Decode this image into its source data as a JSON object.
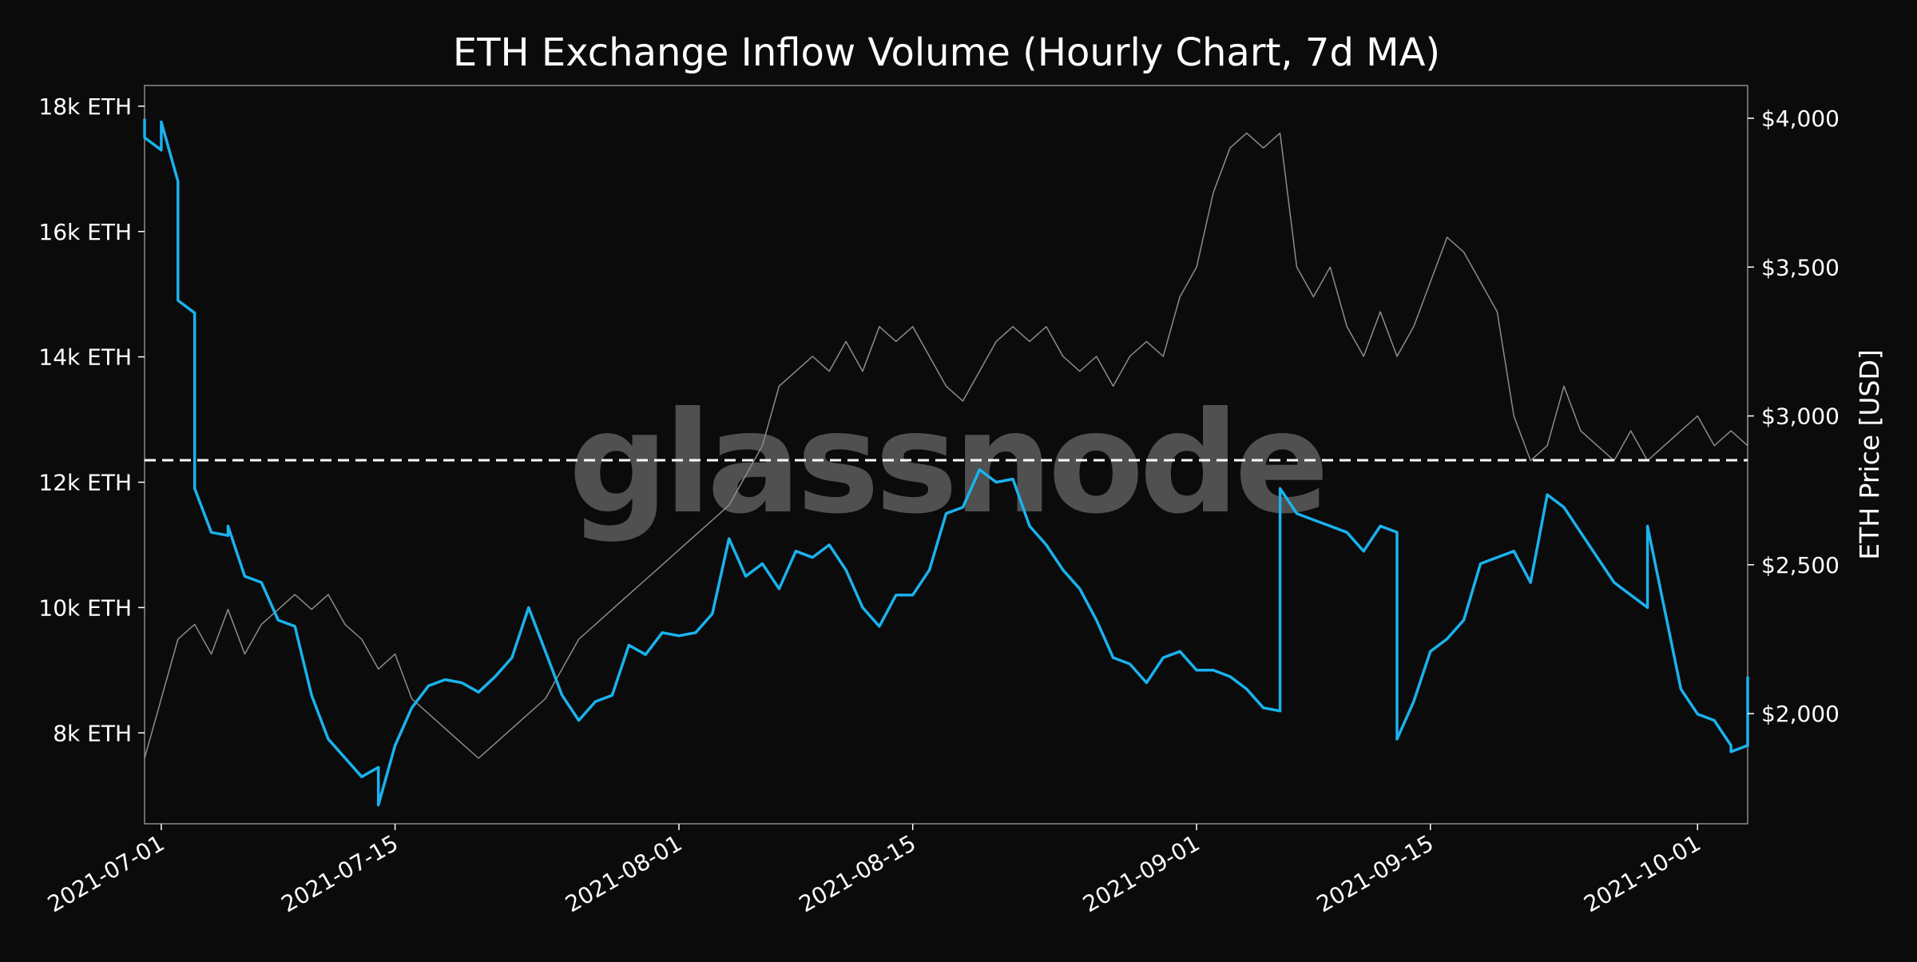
{
  "chart_data": {
    "type": "line",
    "title": "ETH Exchange Inflow Volume (Hourly Chart, 7d MA)",
    "watermark": "glassnode",
    "ylabel_right": "ETH Price [USD]",
    "x_range": [
      "2021-06-30",
      "2021-10-04"
    ],
    "x_ticks": [
      "2021-07-01",
      "2021-07-15",
      "2021-08-01",
      "2021-08-15",
      "2021-09-01",
      "2021-09-15",
      "2021-10-01"
    ],
    "y_left": {
      "range": [
        6550,
        18330
      ],
      "ticks": [
        {
          "value": 8000,
          "label": "8k ETH"
        },
        {
          "value": 10000,
          "label": "10k ETH"
        },
        {
          "value": 12000,
          "label": "12k ETH"
        },
        {
          "value": 14000,
          "label": "14k ETH"
        },
        {
          "value": 16000,
          "label": "16k ETH"
        },
        {
          "value": 18000,
          "label": "18k ETH"
        }
      ]
    },
    "y_right": {
      "range": [
        1630,
        4110
      ],
      "ticks": [
        {
          "value": 2000,
          "label": "$2,000"
        },
        {
          "value": 2500,
          "label": "$2,500"
        },
        {
          "value": 3000,
          "label": "$3,000"
        },
        {
          "value": 3500,
          "label": "$3,500"
        },
        {
          "value": 4000,
          "label": "$4,000"
        }
      ]
    },
    "reference_line": {
      "axis": "left",
      "value": 12350,
      "style": "dashed",
      "color": "#ffffff"
    },
    "grid": false,
    "colors": {
      "background": "#0b0b0b",
      "inflow": "#1ab2ee",
      "price": "#8c8c8c",
      "frame": "#8a8a8a"
    },
    "series": [
      {
        "key": "inflow",
        "axis": "left",
        "points": [
          [
            "2021-06-30",
            17800
          ],
          [
            "2021-06-30",
            17500
          ],
          [
            "2021-07-01",
            17300
          ],
          [
            "2021-07-01",
            17750
          ],
          [
            "2021-07-02",
            16800
          ],
          [
            "2021-07-02",
            14900
          ],
          [
            "2021-07-03",
            14700
          ],
          [
            "2021-07-03",
            11900
          ],
          [
            "2021-07-04",
            11200
          ],
          [
            "2021-07-05",
            11150
          ],
          [
            "2021-07-05",
            11300
          ],
          [
            "2021-07-06",
            10500
          ],
          [
            "2021-07-07",
            10400
          ],
          [
            "2021-07-08",
            9800
          ],
          [
            "2021-07-09",
            9700
          ],
          [
            "2021-07-10",
            8600
          ],
          [
            "2021-07-11",
            7900
          ],
          [
            "2021-07-12",
            7600
          ],
          [
            "2021-07-13",
            7300
          ],
          [
            "2021-07-14",
            7450
          ],
          [
            "2021-07-14",
            6850
          ],
          [
            "2021-07-15",
            7800
          ],
          [
            "2021-07-16",
            8400
          ],
          [
            "2021-07-17",
            8750
          ],
          [
            "2021-07-18",
            8850
          ],
          [
            "2021-07-19",
            8800
          ],
          [
            "2021-07-20",
            8650
          ],
          [
            "2021-07-21",
            8900
          ],
          [
            "2021-07-22",
            9200
          ],
          [
            "2021-07-23",
            10000
          ],
          [
            "2021-07-24",
            9300
          ],
          [
            "2021-07-25",
            8600
          ],
          [
            "2021-07-26",
            8200
          ],
          [
            "2021-07-27",
            8500
          ],
          [
            "2021-07-28",
            8600
          ],
          [
            "2021-07-29",
            9400
          ],
          [
            "2021-07-30",
            9250
          ],
          [
            "2021-07-31",
            9600
          ],
          [
            "2021-08-01",
            9550
          ],
          [
            "2021-08-02",
            9600
          ],
          [
            "2021-08-03",
            9900
          ],
          [
            "2021-08-04",
            11100
          ],
          [
            "2021-08-05",
            10500
          ],
          [
            "2021-08-06",
            10700
          ],
          [
            "2021-08-07",
            10300
          ],
          [
            "2021-08-08",
            10900
          ],
          [
            "2021-08-09",
            10800
          ],
          [
            "2021-08-10",
            11000
          ],
          [
            "2021-08-11",
            10600
          ],
          [
            "2021-08-12",
            10000
          ],
          [
            "2021-08-13",
            9700
          ],
          [
            "2021-08-14",
            10200
          ],
          [
            "2021-08-15",
            10200
          ],
          [
            "2021-08-16",
            10600
          ],
          [
            "2021-08-17",
            11500
          ],
          [
            "2021-08-18",
            11600
          ],
          [
            "2021-08-19",
            12200
          ],
          [
            "2021-08-20",
            12000
          ],
          [
            "2021-08-21",
            12050
          ],
          [
            "2021-08-22",
            11300
          ],
          [
            "2021-08-23",
            11000
          ],
          [
            "2021-08-24",
            10600
          ],
          [
            "2021-08-25",
            10300
          ],
          [
            "2021-08-26",
            9800
          ],
          [
            "2021-08-27",
            9200
          ],
          [
            "2021-08-28",
            9100
          ],
          [
            "2021-08-29",
            8800
          ],
          [
            "2021-08-30",
            9200
          ],
          [
            "2021-08-31",
            9300
          ],
          [
            "2021-09-01",
            9000
          ],
          [
            "2021-09-02",
            9000
          ],
          [
            "2021-09-03",
            8900
          ],
          [
            "2021-09-04",
            8700
          ],
          [
            "2021-09-05",
            8400
          ],
          [
            "2021-09-06",
            8350
          ],
          [
            "2021-09-06",
            11900
          ],
          [
            "2021-09-07",
            11500
          ],
          [
            "2021-09-08",
            11400
          ],
          [
            "2021-09-09",
            11300
          ],
          [
            "2021-09-10",
            11200
          ],
          [
            "2021-09-11",
            10900
          ],
          [
            "2021-09-12",
            11300
          ],
          [
            "2021-09-13",
            11200
          ],
          [
            "2021-09-13",
            7900
          ],
          [
            "2021-09-14",
            8500
          ],
          [
            "2021-09-15",
            9300
          ],
          [
            "2021-09-16",
            9500
          ],
          [
            "2021-09-17",
            9800
          ],
          [
            "2021-09-18",
            10700
          ],
          [
            "2021-09-19",
            10800
          ],
          [
            "2021-09-20",
            10900
          ],
          [
            "2021-09-21",
            10400
          ],
          [
            "2021-09-22",
            11800
          ],
          [
            "2021-09-23",
            11600
          ],
          [
            "2021-09-24",
            11200
          ],
          [
            "2021-09-25",
            10800
          ],
          [
            "2021-09-26",
            10400
          ],
          [
            "2021-09-27",
            10200
          ],
          [
            "2021-09-28",
            10000
          ],
          [
            "2021-09-28",
            11300
          ],
          [
            "2021-09-29",
            10000
          ],
          [
            "2021-09-30",
            8700
          ],
          [
            "2021-10-01",
            8300
          ],
          [
            "2021-10-02",
            8200
          ],
          [
            "2021-10-03",
            7800
          ],
          [
            "2021-10-03",
            7700
          ],
          [
            "2021-10-04",
            7800
          ],
          [
            "2021-10-04",
            8900
          ]
        ]
      },
      {
        "key": "price",
        "axis": "right",
        "points": [
          [
            "2021-06-30",
            1850
          ],
          [
            "2021-07-01",
            2050
          ],
          [
            "2021-07-02",
            2250
          ],
          [
            "2021-07-03",
            2300
          ],
          [
            "2021-07-04",
            2200
          ],
          [
            "2021-07-05",
            2350
          ],
          [
            "2021-07-06",
            2200
          ],
          [
            "2021-07-07",
            2300
          ],
          [
            "2021-07-08",
            2350
          ],
          [
            "2021-07-09",
            2400
          ],
          [
            "2021-07-10",
            2350
          ],
          [
            "2021-07-11",
            2400
          ],
          [
            "2021-07-12",
            2300
          ],
          [
            "2021-07-13",
            2250
          ],
          [
            "2021-07-14",
            2150
          ],
          [
            "2021-07-15",
            2200
          ],
          [
            "2021-07-16",
            2050
          ],
          [
            "2021-07-17",
            2000
          ],
          [
            "2021-07-18",
            1950
          ],
          [
            "2021-07-19",
            1900
          ],
          [
            "2021-07-20",
            1850
          ],
          [
            "2021-07-21",
            1900
          ],
          [
            "2021-07-22",
            1950
          ],
          [
            "2021-07-23",
            2000
          ],
          [
            "2021-07-24",
            2050
          ],
          [
            "2021-07-25",
            2150
          ],
          [
            "2021-07-26",
            2250
          ],
          [
            "2021-07-27",
            2300
          ],
          [
            "2021-07-28",
            2350
          ],
          [
            "2021-07-29",
            2400
          ],
          [
            "2021-07-30",
            2450
          ],
          [
            "2021-07-31",
            2500
          ],
          [
            "2021-08-01",
            2550
          ],
          [
            "2021-08-02",
            2600
          ],
          [
            "2021-08-03",
            2650
          ],
          [
            "2021-08-04",
            2700
          ],
          [
            "2021-08-05",
            2800
          ],
          [
            "2021-08-06",
            2900
          ],
          [
            "2021-08-07",
            3100
          ],
          [
            "2021-08-08",
            3150
          ],
          [
            "2021-08-09",
            3200
          ],
          [
            "2021-08-10",
            3150
          ],
          [
            "2021-08-11",
            3250
          ],
          [
            "2021-08-12",
            3150
          ],
          [
            "2021-08-13",
            3300
          ],
          [
            "2021-08-14",
            3250
          ],
          [
            "2021-08-15",
            3300
          ],
          [
            "2021-08-16",
            3200
          ],
          [
            "2021-08-17",
            3100
          ],
          [
            "2021-08-18",
            3050
          ],
          [
            "2021-08-19",
            3150
          ],
          [
            "2021-08-20",
            3250
          ],
          [
            "2021-08-21",
            3300
          ],
          [
            "2021-08-22",
            3250
          ],
          [
            "2021-08-23",
            3300
          ],
          [
            "2021-08-24",
            3200
          ],
          [
            "2021-08-25",
            3150
          ],
          [
            "2021-08-26",
            3200
          ],
          [
            "2021-08-27",
            3100
          ],
          [
            "2021-08-28",
            3200
          ],
          [
            "2021-08-29",
            3250
          ],
          [
            "2021-08-30",
            3200
          ],
          [
            "2021-08-31",
            3400
          ],
          [
            "2021-09-01",
            3500
          ],
          [
            "2021-09-02",
            3750
          ],
          [
            "2021-09-03",
            3900
          ],
          [
            "2021-09-04",
            3950
          ],
          [
            "2021-09-05",
            3900
          ],
          [
            "2021-09-06",
            3950
          ],
          [
            "2021-09-07",
            3500
          ],
          [
            "2021-09-08",
            3400
          ],
          [
            "2021-09-09",
            3500
          ],
          [
            "2021-09-10",
            3300
          ],
          [
            "2021-09-11",
            3200
          ],
          [
            "2021-09-12",
            3350
          ],
          [
            "2021-09-13",
            3200
          ],
          [
            "2021-09-14",
            3300
          ],
          [
            "2021-09-15",
            3450
          ],
          [
            "2021-09-16",
            3600
          ],
          [
            "2021-09-17",
            3550
          ],
          [
            "2021-09-18",
            3450
          ],
          [
            "2021-09-19",
            3350
          ],
          [
            "2021-09-20",
            3000
          ],
          [
            "2021-09-21",
            2850
          ],
          [
            "2021-09-22",
            2900
          ],
          [
            "2021-09-23",
            3100
          ],
          [
            "2021-09-24",
            2950
          ],
          [
            "2021-09-25",
            2900
          ],
          [
            "2021-09-26",
            2850
          ],
          [
            "2021-09-27",
            2950
          ],
          [
            "2021-09-28",
            2850
          ],
          [
            "2021-09-29",
            2900
          ],
          [
            "2021-09-30",
            2950
          ],
          [
            "2021-10-01",
            3000
          ],
          [
            "2021-10-02",
            2900
          ],
          [
            "2021-10-03",
            2950
          ],
          [
            "2021-10-04",
            2900
          ],
          [
            "2021-10-04",
            3000
          ]
        ]
      }
    ]
  }
}
